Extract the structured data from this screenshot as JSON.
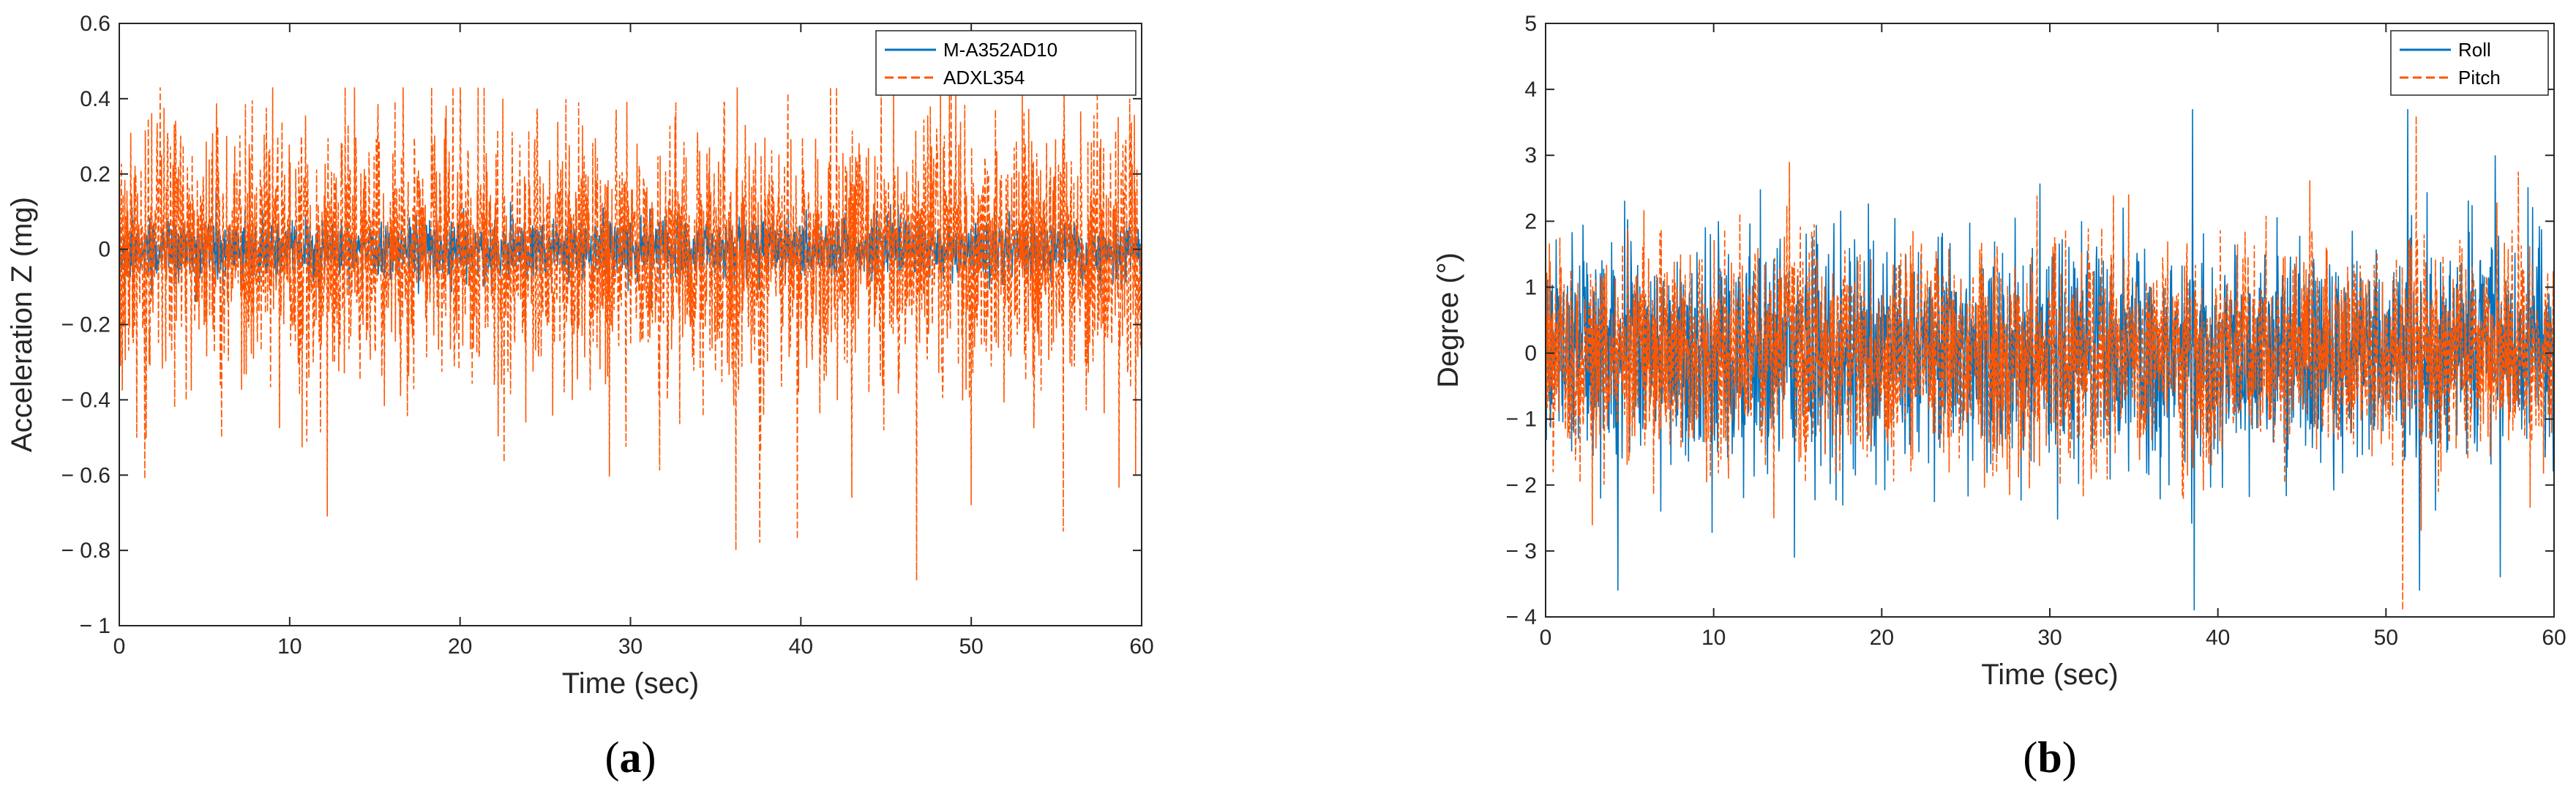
{
  "colors": {
    "series_blue": "#0072BD",
    "series_orange": "#FF5500",
    "axis": "#262626",
    "background": "#ffffff"
  },
  "chart_data": [
    {
      "id": "a",
      "type": "line",
      "panel_label": {
        "open": "(",
        "letter": "a",
        "close": ")"
      },
      "xlabel": "Time (sec)",
      "ylabel": "Acceleration Z (mg)",
      "xlim": [
        0,
        60
      ],
      "ylim": [
        -1,
        0.6
      ],
      "xticks": [
        0,
        10,
        20,
        30,
        40,
        50,
        60
      ],
      "xtick_labels": [
        "0",
        "10",
        "20",
        "30",
        "40",
        "50",
        "60"
      ],
      "yticks": [
        -1,
        -0.8,
        -0.6,
        -0.4,
        -0.2,
        0,
        0.2,
        0.4,
        0.6
      ],
      "ytick_labels": [
        "− 1",
        "− 0.8",
        "− 0.6",
        "− 0.4",
        "− 0.2",
        "0",
        "0.2",
        "0.4",
        "0.6"
      ],
      "grid": false,
      "legend_position": "top-right",
      "series": [
        {
          "name": "M-A352AD10",
          "color": "#0072BD",
          "style": "solid",
          "approx_range": [
            -0.2,
            0.2
          ],
          "mean": 0.0
        },
        {
          "name": "ADXL354",
          "color": "#FF5500",
          "style": "dashed",
          "approx_range": [
            -0.88,
            0.43
          ],
          "mean": -0.01
        }
      ],
      "spikes": [
        {
          "series": "ADXL354",
          "x": 1.5,
          "y": -0.61
        },
        {
          "series": "ADXL354",
          "x": 6.0,
          "y": -0.5
        },
        {
          "series": "ADXL354",
          "x": 12.2,
          "y": -0.71
        },
        {
          "series": "ADXL354",
          "x": 16.5,
          "y": -0.39
        },
        {
          "series": "ADXL354",
          "x": 20.0,
          "y": 0.43
        },
        {
          "series": "ADXL354",
          "x": 22.0,
          "y": -0.36
        },
        {
          "series": "ADXL354",
          "x": 22.5,
          "y": 0.4
        },
        {
          "series": "ADXL354",
          "x": 35.5,
          "y": 0.39
        },
        {
          "series": "ADXL354",
          "x": 36.2,
          "y": -0.8
        },
        {
          "series": "ADXL354",
          "x": 37.6,
          "y": -0.78
        },
        {
          "series": "ADXL354",
          "x": 39.8,
          "y": -0.77
        },
        {
          "series": "ADXL354",
          "x": 43.0,
          "y": -0.66
        },
        {
          "series": "ADXL354",
          "x": 46.8,
          "y": -0.88
        },
        {
          "series": "ADXL354",
          "x": 47.6,
          "y": 0.38
        },
        {
          "series": "ADXL354",
          "x": 50.0,
          "y": -0.68
        },
        {
          "series": "ADXL354",
          "x": 55.4,
          "y": -0.75
        },
        {
          "series": "ADXL354",
          "x": 59.3,
          "y": 0.4
        }
      ]
    },
    {
      "id": "b",
      "type": "line",
      "panel_label": {
        "open": "(",
        "letter": "b",
        "close": ")"
      },
      "xlabel": "Time (sec)",
      "ylabel": "Degree (°)",
      "xlim": [
        0,
        60
      ],
      "ylim": [
        -4,
        5
      ],
      "xticks": [
        0,
        10,
        20,
        30,
        40,
        50,
        60
      ],
      "xtick_labels": [
        "0",
        "10",
        "20",
        "30",
        "40",
        "50",
        "60"
      ],
      "yticks": [
        -4,
        -3,
        -2,
        -1,
        0,
        1,
        2,
        3,
        4,
        5
      ],
      "ytick_labels": [
        "− 4",
        "− 3",
        "− 2",
        "− 1",
        "0",
        "1",
        "2",
        "3",
        "4",
        "5"
      ],
      "grid": false,
      "legend_position": "top-right",
      "series": [
        {
          "name": "Roll",
          "color": "#0072BD",
          "style": "solid",
          "approx_range": [
            -3.9,
            3.7
          ],
          "mean": 0.0
        },
        {
          "name": "Pitch",
          "color": "#FF5500",
          "style": "dashed",
          "approx_range": [
            -3.9,
            3.6
          ],
          "mean": 0.0
        }
      ],
      "spikes": [
        {
          "series": "Roll",
          "x": 4.3,
          "y": -3.6
        },
        {
          "series": "Roll",
          "x": 14.8,
          "y": -3.1
        },
        {
          "series": "Pitch",
          "x": 14.5,
          "y": 2.9
        },
        {
          "series": "Roll",
          "x": 38.5,
          "y": 3.7
        },
        {
          "series": "Roll",
          "x": 38.6,
          "y": -3.9
        },
        {
          "series": "Pitch",
          "x": 51.0,
          "y": -3.9
        },
        {
          "series": "Roll",
          "x": 51.3,
          "y": 3.7
        },
        {
          "series": "Roll",
          "x": 52.0,
          "y": -3.6
        },
        {
          "series": "Pitch",
          "x": 51.8,
          "y": 3.6
        },
        {
          "series": "Roll",
          "x": 56.5,
          "y": 3.0
        },
        {
          "series": "Roll",
          "x": 56.8,
          "y": -3.4
        }
      ]
    }
  ]
}
